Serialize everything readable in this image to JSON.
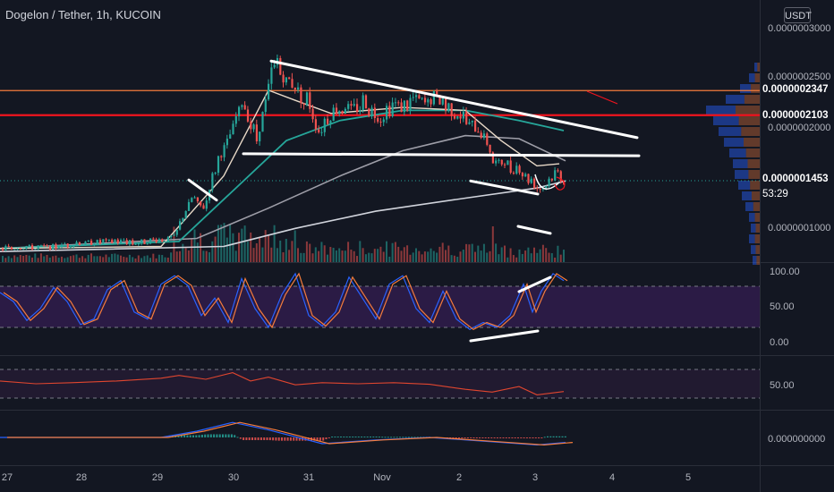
{
  "header": {
    "title": "Dogelon / Tether, 1h, KUCOIN",
    "currency_button": "USDT"
  },
  "price_axis": {
    "ticks": [
      "0.0000003000",
      "0.0000002500",
      "0.0000002000",
      "0.0000001000"
    ],
    "tags": {
      "upper": {
        "label": "0.0000002347",
        "color": "#f57c3c"
      },
      "red": {
        "label": "0.0000002103",
        "color": "#f0141e"
      },
      "last": {
        "label": "0.0000001453",
        "countdown": "53:29",
        "color": "#23685a"
      }
    }
  },
  "x_axis": {
    "labels": [
      "27",
      "28",
      "29",
      "30",
      "31",
      "Nov",
      "2",
      "3",
      "4",
      "5"
    ]
  },
  "stoch_rsi": {
    "ticks": [
      "100.00",
      "50.00",
      "0.00"
    ],
    "colors": {
      "k": "#2962ff",
      "d": "#f57c3c",
      "band": "#3a1f5e"
    }
  },
  "rsi": {
    "ticks": [
      "50.00"
    ],
    "color": "#e0462f",
    "band": "#2a1b3a"
  },
  "macd": {
    "ticks": [
      "0.000000000"
    ]
  },
  "colors": {
    "up": "#26a69a",
    "down": "#ef5350",
    "background": "#131722"
  },
  "chart_data": {
    "type": "candlestick",
    "title": "Dogelon / Tether, 1h, KUCOIN",
    "x_labels": [
      "27",
      "28",
      "29",
      "30",
      "31",
      "Nov",
      "2",
      "3",
      "4",
      "5"
    ],
    "y_range": [
      7e-08,
      3.2e-07
    ],
    "price_path": [
      [
        0,
        7.8e-08
      ],
      [
        20,
        7.9e-08
      ],
      [
        50,
        7.9e-08
      ],
      [
        80,
        8.2e-08
      ],
      [
        110,
        8.5e-08
      ],
      [
        140,
        8.4e-08
      ],
      [
        180,
        8.6e-08
      ],
      [
        195,
        9e-08
      ],
      [
        205,
        1.15e-07
      ],
      [
        215,
        1.28e-07
      ],
      [
        225,
        1.15e-07
      ],
      [
        235,
        1.45e-07
      ],
      [
        245,
        1.7e-07
      ],
      [
        255,
        1.85e-07
      ],
      [
        262,
        2.05e-07
      ],
      [
        270,
        2.25e-07
      ],
      [
        278,
        2.05e-07
      ],
      [
        286,
        1.9e-07
      ],
      [
        294,
        2.15e-07
      ],
      [
        302,
        2.5e-07
      ],
      [
        310,
        2.65e-07
      ],
      [
        318,
        2.4e-07
      ],
      [
        326,
        2.45e-07
      ],
      [
        334,
        2.3e-07
      ],
      [
        344,
        2.25e-07
      ],
      [
        354,
        1.95e-07
      ],
      [
        364,
        2.05e-07
      ],
      [
        374,
        2.15e-07
      ],
      [
        384,
        2.2e-07
      ],
      [
        394,
        2.15e-07
      ],
      [
        404,
        2.25e-07
      ],
      [
        414,
        2.12e-07
      ],
      [
        424,
        2.08e-07
      ],
      [
        434,
        2.15e-07
      ],
      [
        444,
        2.2e-07
      ],
      [
        454,
        2.18e-07
      ],
      [
        464,
        2.25e-07
      ],
      [
        474,
        2.2e-07
      ],
      [
        484,
        2.3e-07
      ],
      [
        494,
        2.2e-07
      ],
      [
        504,
        2.15e-07
      ],
      [
        514,
        2.1e-07
      ],
      [
        524,
        2e-07
      ],
      [
        534,
        1.95e-07
      ],
      [
        544,
        1.85e-07
      ],
      [
        552,
        1.6e-07
      ],
      [
        560,
        1.65e-07
      ],
      [
        570,
        1.58e-07
      ],
      [
        580,
        1.55e-07
      ],
      [
        590,
        1.45e-07
      ],
      [
        600,
        1.4e-07
      ],
      [
        610,
        1.42e-07
      ],
      [
        620,
        1.52e-07
      ],
      [
        628,
        1.453e-07
      ]
    ],
    "drawn_trendlines": [
      {
        "from": [
          303,
          2.64e-07
        ],
        "to": [
          712,
          1.88e-07
        ]
      },
      {
        "from": [
          272,
          1.72e-07
        ],
        "to": [
          714,
          1.7e-07
        ]
      },
      {
        "from": [
          526,
          1.45e-07
        ],
        "to": [
          601,
          1.32e-07
        ]
      },
      {
        "from": [
          579,
          1e-07
        ],
        "to": [
          615,
          9.3e-08
        ]
      },
      {
        "from": [
          211,
          1.46e-07
        ],
        "to": [
          242,
          1.26e-07
        ]
      }
    ],
    "horizontal_levels": [
      {
        "price": 2.347e-07,
        "color": "#f57c3c"
      },
      {
        "price": 2.103e-07,
        "color": "#f0141e"
      }
    ],
    "last_price": 1.453e-07,
    "stoch_rsi_range": [
      0,
      100
    ],
    "rsi_range": [
      0,
      100
    ],
    "x_label_positions": [
      8,
      91,
      176,
      261,
      345,
      427,
      513,
      598,
      684,
      769
    ],
    "ma_white_path": [
      [
        0,
        7.8e-08
      ],
      [
        180,
        8e-08
      ],
      [
        250,
        1.5e-07
      ],
      [
        300,
        2.35e-07
      ],
      [
        330,
        2.25e-07
      ],
      [
        370,
        2.12e-07
      ],
      [
        450,
        2.18e-07
      ],
      [
        520,
        2.15e-07
      ],
      [
        560,
        1.85e-07
      ],
      [
        600,
        1.6e-07
      ],
      [
        625,
        1.62e-07
      ]
    ],
    "ma_green_path": [
      [
        0,
        7.8e-08
      ],
      [
        200,
        8.5e-08
      ],
      [
        260,
        1.35e-07
      ],
      [
        320,
        1.85e-07
      ],
      [
        380,
        2.05e-07
      ],
      [
        450,
        2.15e-07
      ],
      [
        520,
        2.15e-07
      ],
      [
        580,
        2.05e-07
      ],
      [
        630,
        1.95e-07
      ]
    ],
    "ma_gray_path": [
      [
        0,
        7.8e-08
      ],
      [
        220,
        8.8e-08
      ],
      [
        300,
        1.18e-07
      ],
      [
        380,
        1.5e-07
      ],
      [
        450,
        1.75e-07
      ],
      [
        520,
        1.9e-07
      ],
      [
        580,
        1.87e-07
      ],
      [
        632,
        1.65e-07
      ]
    ],
    "ma_silver_path": [
      [
        0,
        7.5e-08
      ],
      [
        250,
        8e-08
      ],
      [
        330,
        9.8e-08
      ],
      [
        420,
        1.15e-07
      ],
      [
        520,
        1.28e-07
      ],
      [
        600,
        1.38e-07
      ],
      [
        632,
        1.45e-07
      ]
    ],
    "stoch_path": [
      [
        0,
        68
      ],
      [
        15,
        55
      ],
      [
        30,
        28
      ],
      [
        45,
        45
      ],
      [
        60,
        75
      ],
      [
        75,
        55
      ],
      [
        90,
        22
      ],
      [
        105,
        30
      ],
      [
        120,
        72
      ],
      [
        135,
        85
      ],
      [
        150,
        40
      ],
      [
        165,
        30
      ],
      [
        180,
        80
      ],
      [
        195,
        92
      ],
      [
        210,
        78
      ],
      [
        225,
        35
      ],
      [
        240,
        60
      ],
      [
        255,
        25
      ],
      [
        270,
        88
      ],
      [
        285,
        45
      ],
      [
        300,
        18
      ],
      [
        315,
        65
      ],
      [
        330,
        95
      ],
      [
        345,
        35
      ],
      [
        360,
        20
      ],
      [
        375,
        40
      ],
      [
        390,
        90
      ],
      [
        405,
        60
      ],
      [
        420,
        30
      ],
      [
        435,
        80
      ],
      [
        450,
        92
      ],
      [
        465,
        45
      ],
      [
        480,
        25
      ],
      [
        495,
        70
      ],
      [
        510,
        30
      ],
      [
        525,
        15
      ],
      [
        540,
        25
      ],
      [
        555,
        18
      ],
      [
        570,
        35
      ],
      [
        585,
        80
      ],
      [
        595,
        40
      ],
      [
        605,
        70
      ],
      [
        618,
        95
      ],
      [
        630,
        85
      ]
    ],
    "rsi_path": [
      [
        0,
        55
      ],
      [
        40,
        50
      ],
      [
        80,
        52
      ],
      [
        130,
        55
      ],
      [
        180,
        60
      ],
      [
        200,
        65
      ],
      [
        230,
        58
      ],
      [
        260,
        70
      ],
      [
        280,
        55
      ],
      [
        300,
        62
      ],
      [
        330,
        48
      ],
      [
        360,
        52
      ],
      [
        400,
        50
      ],
      [
        440,
        52
      ],
      [
        480,
        49
      ],
      [
        520,
        40
      ],
      [
        550,
        35
      ],
      [
        580,
        45
      ],
      [
        600,
        30
      ],
      [
        630,
        36
      ]
    ],
    "macd_path": [
      [
        0,
        0
      ],
      [
        180,
        0
      ],
      [
        220,
        0.5
      ],
      [
        260,
        1.2
      ],
      [
        300,
        0.6
      ],
      [
        360,
        -0.5
      ],
      [
        420,
        -0.2
      ],
      [
        480,
        0
      ],
      [
        540,
        -0.3
      ],
      [
        600,
        -0.6
      ],
      [
        632,
        -0.4
      ]
    ]
  }
}
